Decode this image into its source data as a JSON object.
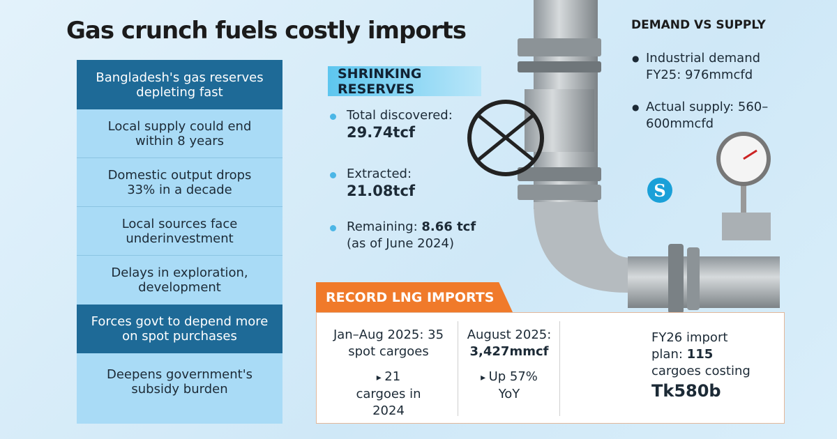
{
  "header": {
    "title": "Gas crunch fuels costly imports"
  },
  "left_panel": {
    "heading": "Bangladesh's gas reserves depleting fast",
    "items": [
      "Local supply could end within 8 years",
      "Domestic output drops 33% in a decade",
      "Local sources face underinvestment",
      "Delays in exploration, development"
    ],
    "consequence": "Forces govt to depend more on spot purchases",
    "final_item": "Deepens government's subsidy burden"
  },
  "reserves": {
    "heading": "SHRINKING RESERVES",
    "items": [
      {
        "label": "Total discovered:",
        "value": "29.74tcf"
      },
      {
        "label": "Extracted:",
        "value": "21.08tcf"
      },
      {
        "label": "Remaining:",
        "value": "8.66 tcf",
        "note": "(as of June 2024)"
      }
    ]
  },
  "demand_supply": {
    "heading": "DEMAND VS SUPPLY",
    "items": [
      "Industrial demand FY25: 976mmcfd",
      "Actual supply: 560–600mmcfd"
    ]
  },
  "logo": "S",
  "lng": {
    "heading": "RECORD LNG IMPORTS",
    "cells": [
      {
        "main": "Jan–Aug 2025: 35 spot cargoes",
        "sub": "21 cargoes in 2024"
      },
      {
        "main": "August 2025:",
        "value": "3,427mmcf",
        "sub": "Up 57% YoY"
      },
      {
        "main": "FY26 import plan:",
        "value": "115",
        "after": "cargoes costing",
        "total": "Tk580b"
      }
    ]
  }
}
